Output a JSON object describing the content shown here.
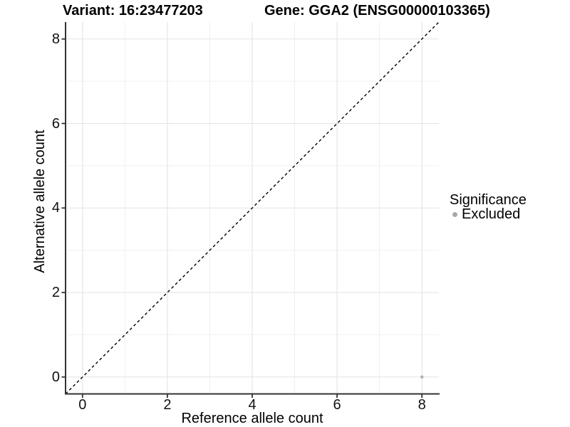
{
  "figure": {
    "title_variant": "Variant: 16:23477203",
    "title_gene": "Gene: GGA2 (ENSG00000103365)"
  },
  "axes": {
    "x_title": "Reference allele count",
    "y_title": "Alternative allele count"
  },
  "legend": {
    "title": "Significance",
    "items": [
      {
        "label": "Excluded",
        "color": "#a8a8a8"
      }
    ]
  },
  "colors": {
    "grid_major": "#e3e3e3",
    "grid_minor": "#f0f0f0",
    "axis_line": "#333333",
    "tick_mark": "#333333",
    "identity_line": "#000000",
    "point": "#b3b3b3",
    "background": "#ffffff"
  },
  "chart_data": {
    "type": "scatter",
    "title": "Variant: 16:23477203   Gene: GGA2 (ENSG00000103365)",
    "xlabel": "Reference allele count",
    "ylabel": "Alternative allele count",
    "xlim": [
      -0.4,
      8.4
    ],
    "ylim": [
      -0.4,
      8.4
    ],
    "x_ticks": [
      0,
      2,
      4,
      6,
      8
    ],
    "y_ticks": [
      0,
      2,
      4,
      6,
      8
    ],
    "x_minor_ticks": [
      1,
      3,
      5,
      7
    ],
    "y_minor_ticks": [
      1,
      3,
      5,
      7
    ],
    "grid": true,
    "legend_position": "right",
    "series": [
      {
        "name": "Excluded",
        "color": "#b3b3b3",
        "points": [
          {
            "x": 8,
            "y": 0
          }
        ]
      }
    ],
    "reference_line": {
      "type": "identity",
      "style": "dashed",
      "from": [
        -0.4,
        -0.4
      ],
      "to": [
        8.4,
        8.4
      ]
    }
  }
}
